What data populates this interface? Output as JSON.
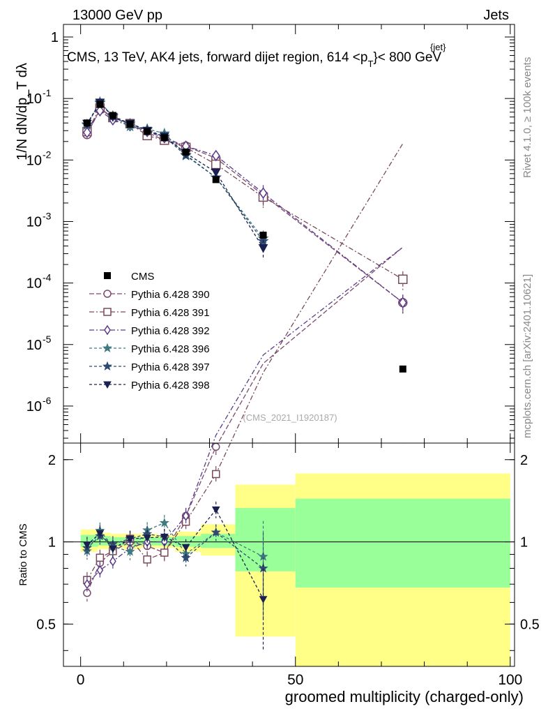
{
  "header": {
    "left": "13000 GeV pp",
    "right": "Jets"
  },
  "side_labels": {
    "top": "Rivet 4.1.0, ≥ 100k events",
    "bottom": "mcplots.cern.ch [arXiv:2401.10621]"
  },
  "watermark": "(CMS_2021_I1920187)",
  "chart_data": {
    "type": "line",
    "title": "CMS, 13 TeV, AK4 jets, forward dijet region, 614 <p",
    "title_sup": "{jet}",
    "title_sub": "T",
    "title_end": "}< 800 GeV",
    "xlabel": "groomed multiplicity (charged-only)",
    "ylabel": "1/N dN/dp_T dλ",
    "ratio_ylabel": "Ratio to CMS",
    "xlim": [
      -4,
      101
    ],
    "ylim_log": [
      2.5e-07,
      1.6
    ],
    "ratio_ylim": [
      0.35,
      2.3
    ],
    "x_ticks": [
      "0",
      "50",
      "100"
    ],
    "y_ticks": [
      "1",
      "10^-1",
      "10^-2",
      "10^-3",
      "10^-4",
      "10^-5",
      "10^-6"
    ],
    "ratio_ticks": [
      "0.5",
      "1",
      "2"
    ],
    "cms": {
      "name": "CMS",
      "x": [
        1.5,
        4.5,
        7.5,
        11.5,
        15.5,
        19.5,
        24.5,
        31.5,
        42.5,
        75
      ],
      "y": [
        0.04,
        0.08,
        0.053,
        0.038,
        0.029,
        0.023,
        0.0135,
        0.0048,
        0.0006,
        4e-06
      ]
    },
    "series": [
      {
        "name": "Pythia 6.428 390",
        "color": "#7a4a6e",
        "marker": "circle",
        "dash": "7,3",
        "y": [
          0.026,
          0.067,
          0.049,
          0.038,
          0.028,
          0.021,
          0.0168,
          0.0107,
          0.0027,
          4.8e-05
        ]
      },
      {
        "name": "Pythia 6.428 391",
        "color": "#7a4a5a",
        "marker": "square",
        "dash": "7,3,2,3",
        "y": [
          0.029,
          0.07,
          0.049,
          0.039,
          0.025,
          0.021,
          0.016,
          0.0085,
          0.0025,
          0.000115
        ]
      },
      {
        "name": "Pythia 6.428 392",
        "color": "#5a3a8a",
        "marker": "diamond",
        "dash": "7,3,2,3",
        "y": [
          0.028,
          0.063,
          0.045,
          0.036,
          0.029,
          0.023,
          0.0168,
          0.0118,
          0.0029,
          4.8e-05
        ]
      },
      {
        "name": "Pythia 6.428 396",
        "color": "#3f7a80",
        "marker": "star",
        "dash": "4,3",
        "y": [
          0.037,
          0.088,
          0.051,
          0.035,
          0.032,
          0.027,
          0.0122,
          0.0052,
          0.00053,
          null
        ]
      },
      {
        "name": "Pythia 6.428 397",
        "color": "#2f4a70",
        "marker": "star",
        "dash": "4,3",
        "y": [
          0.038,
          0.084,
          0.052,
          0.039,
          0.031,
          0.024,
          0.0118,
          0.0052,
          0.00048,
          null
        ]
      },
      {
        "name": "Pythia 6.428 398",
        "color": "#1a2050",
        "marker": "triangle",
        "dash": "4,3",
        "y": [
          0.039,
          0.086,
          0.05,
          0.039,
          0.03,
          0.024,
          0.0129,
          0.0063,
          0.00037,
          null
        ]
      }
    ],
    "ratio_bands": [
      {
        "x0": 0,
        "x1": 4,
        "inner": [
          0.96,
          1.06
        ],
        "outer": [
          0.92,
          1.11
        ]
      },
      {
        "x0": 4,
        "x1": 7,
        "inner": [
          0.97,
          1.05
        ],
        "outer": [
          0.94,
          1.08
        ]
      },
      {
        "x0": 7,
        "x1": 10,
        "inner": [
          0.97,
          1.04
        ],
        "outer": [
          0.95,
          1.07
        ]
      },
      {
        "x0": 10,
        "x1": 14,
        "inner": [
          0.97,
          1.04
        ],
        "outer": [
          0.94,
          1.07
        ]
      },
      {
        "x0": 14,
        "x1": 18,
        "inner": [
          0.97,
          1.04
        ],
        "outer": [
          0.95,
          1.07
        ]
      },
      {
        "x0": 18,
        "x1": 22,
        "inner": [
          0.97,
          1.04
        ],
        "outer": [
          0.95,
          1.06
        ]
      },
      {
        "x0": 22,
        "x1": 28,
        "inner": [
          0.96,
          1.05
        ],
        "outer": [
          0.92,
          1.09
        ]
      },
      {
        "x0": 28,
        "x1": 36,
        "inner": [
          0.95,
          1.07
        ],
        "outer": [
          0.89,
          1.16
        ]
      },
      {
        "x0": 36,
        "x1": 50,
        "inner": [
          0.78,
          1.33
        ],
        "outer": [
          0.45,
          1.62
        ]
      },
      {
        "x0": 50,
        "x1": 100,
        "inner": [
          0.68,
          1.44
        ],
        "outer": [
          0.35,
          1.78
        ]
      }
    ]
  }
}
